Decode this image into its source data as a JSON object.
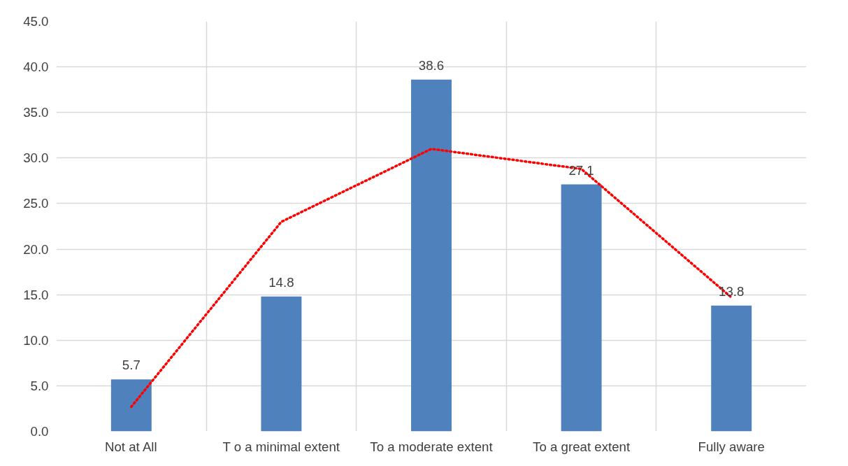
{
  "chart_data": {
    "type": "bar",
    "categories": [
      "Not at All",
      "T o a minimal extent",
      "To a moderate extent",
      "To a great extent",
      "Fully aware"
    ],
    "series": [
      {
        "color": "#4f81bd",
        "values": [
          5.7,
          14.8,
          38.6,
          27.1,
          13.8
        ],
        "value_labels": [
          "5.7",
          "14.8",
          "38.6",
          "27.1",
          "13.8"
        ]
      },
      {
        "type": "line",
        "color": "#ff0000",
        "line_style": "dotted",
        "marker": "none",
        "x": [
          "Not at All",
          "T o a minimal extent",
          "To a moderate extent",
          "To a great extent",
          "Fully aware"
        ],
        "values": [
          2.7,
          23.0,
          31.0,
          28.8,
          14.7
        ]
      }
    ],
    "ylim": [
      0,
      45
    ],
    "yticks": [
      "0.0",
      "5.0",
      "10.0",
      "15.0",
      "20.0",
      "25.0",
      "30.0",
      "35.0",
      "40.0",
      "45.0"
    ],
    "grid": true
  }
}
